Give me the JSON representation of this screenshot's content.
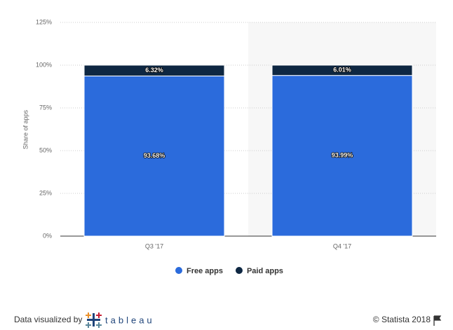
{
  "chart_data": {
    "type": "stacked_bar",
    "y_label": "Share of apps",
    "categories": [
      "Q3 '17",
      "Q4 '17"
    ],
    "series": [
      {
        "name": "Free apps",
        "color": "#2b6bdc",
        "values": [
          93.68,
          93.99
        ],
        "value_labels": [
          "93.68%",
          "93.99%"
        ]
      },
      {
        "name": "Paid apps",
        "color": "#0e2742",
        "values": [
          6.32,
          6.01
        ],
        "value_labels": [
          "6.32%",
          "6.01%"
        ]
      }
    ],
    "ylim": [
      0,
      125
    ],
    "yticks": [
      {
        "value": 0,
        "label": "0%"
      },
      {
        "value": 25,
        "label": "25%"
      },
      {
        "value": 50,
        "label": "50%"
      },
      {
        "value": 75,
        "label": "75%"
      },
      {
        "value": 100,
        "label": "100%"
      },
      {
        "value": 125,
        "label": "125%"
      }
    ],
    "grid": true,
    "legend": "bottom"
  },
  "footer": {
    "left": "Data visualized by",
    "logo": "tableau",
    "right": "© Statista 2018"
  }
}
